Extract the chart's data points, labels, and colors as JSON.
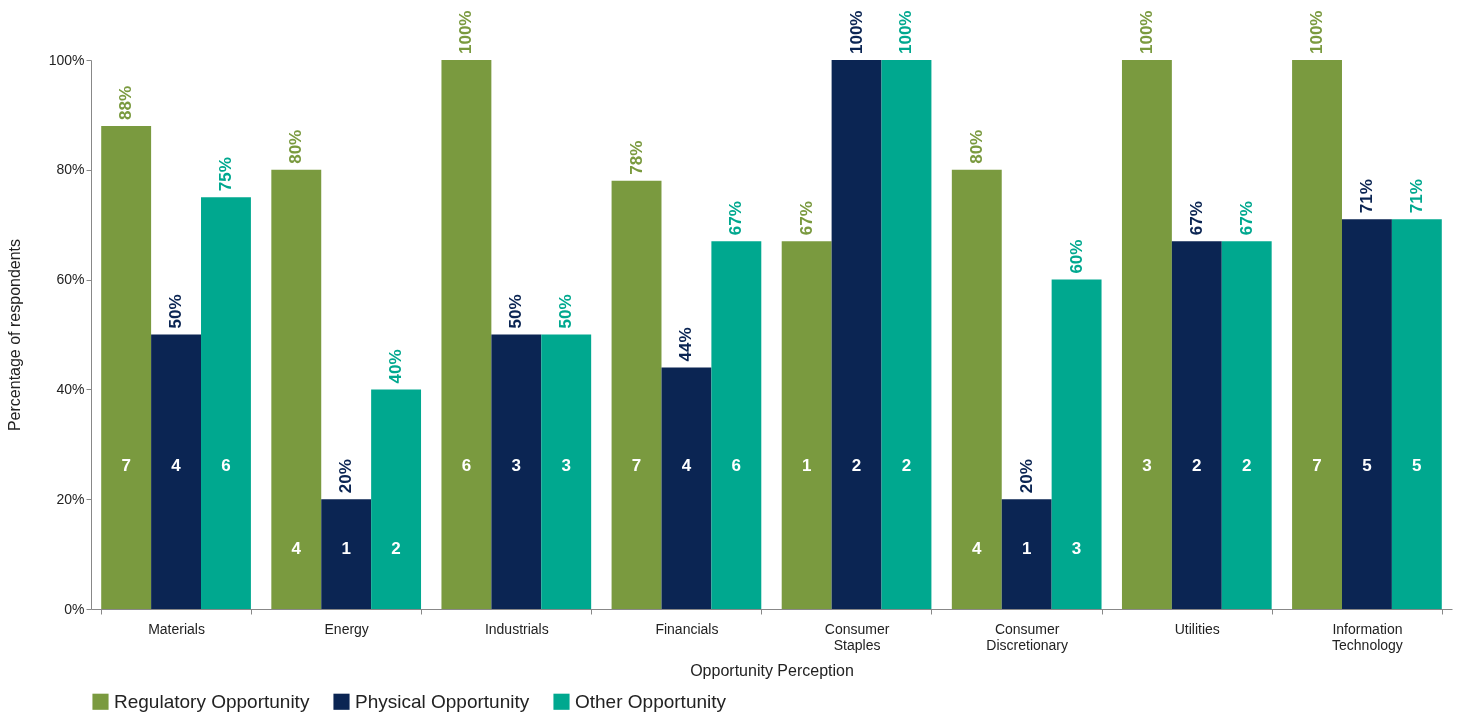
{
  "chart_data": {
    "type": "bar",
    "xlabel": "Opportunity Perception",
    "ylabel": "Percentage of respondents",
    "categories": [
      "Materials",
      "Energy",
      "Industrials",
      "Financials",
      "Consumer Staples",
      "Consumer Discretionary",
      "Utilities",
      "Information Technology"
    ],
    "series": [
      {
        "name": "Regulatory Opportunity",
        "color": "#7a9a3f",
        "values": [
          88,
          80,
          100,
          78,
          67,
          80,
          100,
          100
        ],
        "value_labels": [
          "88%",
          "80%",
          "100%",
          "78%",
          "67%",
          "80%",
          "100%",
          "100%"
        ]
      },
      {
        "name": "Physical Opportunity",
        "color": "#0b2553",
        "values": [
          50,
          20,
          50,
          44,
          100,
          20,
          67,
          71
        ],
        "value_labels": [
          "50%",
          "20%",
          "50%",
          "44%",
          "100%",
          "20%",
          "67%",
          "71%"
        ]
      },
      {
        "name": "Other Opportunity",
        "color": "#00a88f",
        "values": [
          75,
          40,
          50,
          67,
          100,
          60,
          67,
          71
        ],
        "value_labels": [
          "75%",
          "40%",
          "50%",
          "67%",
          "100%",
          "60%",
          "67%",
          "71%"
        ]
      }
    ],
    "ylim": [
      0,
      100
    ],
    "yticks": [
      {
        "value": 0,
        "label": "0%"
      },
      {
        "value": 20,
        "label": "20%"
      },
      {
        "value": 40,
        "label": "40%"
      },
      {
        "value": 60,
        "label": "60%"
      },
      {
        "value": 80,
        "label": "80%"
      },
      {
        "value": 100,
        "label": "100%"
      }
    ],
    "legend": "bottom left",
    "grid": false,
    "annotations": [
      "7",
      "4",
      "6",
      "4",
      "1",
      "2",
      "6",
      "3",
      "3",
      "7",
      "4",
      "6",
      "1",
      "2",
      "2",
      "4",
      "1",
      "3",
      "3",
      "2",
      "2",
      "7",
      "5",
      "5"
    ]
  }
}
